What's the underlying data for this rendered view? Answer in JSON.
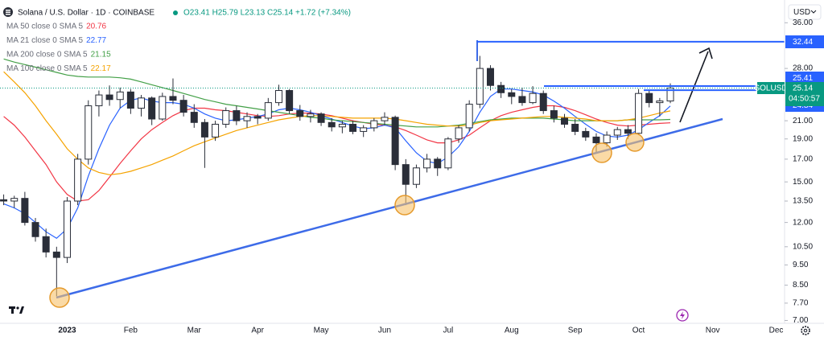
{
  "chart_data": {
    "type": "candlestick",
    "title": "Solana / U.S. Dollar · 1D · COINBASE",
    "ohlc_readout": "O23.41 H25.79 L23.13 C25.14 +1.72 (+7.34%)",
    "currency": "USD",
    "symbol": "SOLUSD",
    "countdown": "04:50:57",
    "log_scale": true,
    "grid": false,
    "up_color": "#ffffff",
    "down_color": "#2a2e39",
    "wick_color": "#2a2e39",
    "level_color": "#2962ff",
    "last_color": "#089981",
    "ylim": [
      6.8,
      40.8
    ],
    "yticks": [
      {
        "value": 36,
        "label": "36.00"
      },
      {
        "value": 28,
        "label": "28.00"
      },
      {
        "value": 21,
        "label": "21.00"
      },
      {
        "value": 19,
        "label": "19.00"
      },
      {
        "value": 17,
        "label": "17.00"
      },
      {
        "value": 15,
        "label": "15.00"
      },
      {
        "value": 13.5,
        "label": "13.50"
      },
      {
        "value": 12,
        "label": "12.00"
      },
      {
        "value": 10.5,
        "label": "10.50"
      },
      {
        "value": 9.5,
        "label": "9.50"
      },
      {
        "value": 8.5,
        "label": "8.50"
      },
      {
        "value": 7.7,
        "label": "7.70"
      },
      {
        "value": 7,
        "label": "7.00"
      }
    ],
    "levels": [
      32.44,
      25.41,
      24.84
    ],
    "categories": [
      null,
      null,
      null,
      null,
      null,
      null,
      "2023",
      null,
      null,
      null,
      null,
      null,
      "Feb",
      null,
      null,
      null,
      null,
      null,
      "Mar",
      null,
      null,
      null,
      null,
      null,
      "Apr",
      null,
      null,
      null,
      null,
      null,
      "May",
      null,
      null,
      null,
      null,
      null,
      "Jun",
      null,
      null,
      null,
      null,
      null,
      "Jul",
      null,
      null,
      null,
      null,
      null,
      "Aug",
      null,
      null,
      null,
      null,
      null,
      "Sep",
      null,
      null,
      null,
      null,
      null,
      "Oct",
      null,
      null,
      null,
      null,
      null,
      null,
      "Nov",
      null,
      null,
      null,
      null,
      null,
      "Dec"
    ],
    "ohlc": {
      "open": [
        13.6,
        13.5,
        13.7,
        12.0,
        11.1,
        10.2,
        9.9,
        13.5,
        17.0,
        22.8,
        24.2,
        23.6,
        24.6,
        22.5,
        23.8,
        21.2,
        24.0,
        23.5,
        22.0,
        20.8,
        19.2,
        20.6,
        22.2,
        21.0,
        21.5,
        21.3,
        23.2,
        24.8,
        22.2,
        21.5,
        21.8,
        20.8,
        20.3,
        20.6,
        19.8,
        20.2,
        21.0,
        21.4,
        16.5,
        14.8,
        16.2,
        17.0,
        16.2,
        19.0,
        20.2,
        23.0,
        28.0,
        25.5,
        24.5,
        24.0,
        23.2,
        24.4,
        22.2,
        21.3,
        20.6,
        19.8,
        19.2,
        18.6,
        19.4,
        20.0,
        19.6,
        24.4,
        23.2,
        23.41,
        null,
        null,
        null,
        null,
        null,
        null,
        null,
        null,
        null,
        null
      ],
      "high": [
        14.0,
        13.9,
        14.2,
        12.3,
        11.6,
        10.5,
        13.8,
        17.5,
        23.5,
        24.8,
        25.5,
        25.2,
        25.0,
        24.2,
        24.0,
        24.5,
        26.5,
        24.2,
        23.0,
        21.2,
        21.0,
        22.6,
        22.8,
        22.0,
        21.8,
        23.8,
        25.6,
        25.0,
        22.9,
        22.3,
        22.0,
        21.3,
        21.0,
        21.0,
        20.5,
        21.3,
        22.0,
        21.6,
        17.0,
        16.5,
        17.5,
        17.2,
        19.2,
        20.5,
        23.5,
        30.0,
        28.5,
        26.0,
        25.0,
        25.2,
        25.4,
        24.8,
        22.8,
        21.8,
        21.2,
        20.2,
        19.6,
        19.8,
        20.3,
        20.5,
        25.0,
        24.8,
        23.8,
        25.79,
        null,
        null,
        null,
        null,
        null,
        null,
        null,
        null,
        null,
        null
      ],
      "low": [
        13.2,
        13.0,
        11.8,
        10.8,
        9.9,
        8.0,
        9.6,
        13.2,
        16.5,
        21.5,
        22.8,
        22.5,
        21.8,
        21.5,
        20.5,
        21.0,
        23.0,
        21.5,
        20.2,
        16.2,
        18.8,
        20.2,
        20.5,
        20.2,
        20.6,
        21.0,
        22.8,
        21.8,
        21.0,
        20.8,
        20.4,
        19.8,
        19.6,
        19.5,
        19.2,
        19.8,
        20.5,
        16.0,
        13.2,
        14.5,
        15.8,
        15.5,
        16.0,
        18.6,
        19.8,
        22.5,
        24.8,
        23.8,
        23.0,
        22.8,
        23.0,
        21.8,
        20.8,
        20.2,
        19.4,
        18.8,
        17.6,
        18.2,
        18.9,
        19.0,
        19.4,
        22.6,
        21.5,
        23.13,
        null,
        null,
        null,
        null,
        null,
        null,
        null,
        null,
        null,
        null
      ],
      "close": [
        13.5,
        13.7,
        12.0,
        11.1,
        10.2,
        9.9,
        13.5,
        17.0,
        22.8,
        24.2,
        23.6,
        24.6,
        22.5,
        23.8,
        21.2,
        24.0,
        23.5,
        22.0,
        20.8,
        19.2,
        20.6,
        22.2,
        21.0,
        21.5,
        21.3,
        23.2,
        24.8,
        22.2,
        21.5,
        21.8,
        20.8,
        20.3,
        20.6,
        19.8,
        20.2,
        21.0,
        21.4,
        16.5,
        14.8,
        16.2,
        17.0,
        16.2,
        19.0,
        20.2,
        23.0,
        28.0,
        25.5,
        24.5,
        24.0,
        23.2,
        24.4,
        22.2,
        21.3,
        20.6,
        19.8,
        19.2,
        18.6,
        19.4,
        20.0,
        19.6,
        24.4,
        23.2,
        23.41,
        25.14,
        null,
        null,
        null,
        null,
        null,
        null,
        null,
        null,
        null,
        null
      ]
    },
    "series": [
      {
        "name": "MA 50 close 0 SMA 5",
        "color": "#f23645",
        "values": [
          21.5,
          20.5,
          19.2,
          17.8,
          16.5,
          15.0,
          14.0,
          13.5,
          13.6,
          14.3,
          15.4,
          16.6,
          17.8,
          19.0,
          20.0,
          20.8,
          21.6,
          22.2,
          22.5,
          22.5,
          22.3,
          22.2,
          22.0,
          21.8,
          21.6,
          21.5,
          21.6,
          21.8,
          21.9,
          21.9,
          21.8,
          21.6,
          21.3,
          21.0,
          20.8,
          20.6,
          20.5,
          20.3,
          19.9,
          19.4,
          18.9,
          18.6,
          18.6,
          18.9,
          19.4,
          20.2,
          21.0,
          21.6,
          22.0,
          22.3,
          22.6,
          22.8,
          22.8,
          22.6,
          22.2,
          21.7,
          21.2,
          20.8,
          20.5,
          20.4,
          20.5,
          20.6,
          20.7,
          20.76,
          null,
          null,
          null,
          null,
          null,
          null,
          null,
          null,
          null,
          null
        ]
      },
      {
        "name": "MA 21 close 0 SMA 5",
        "color": "#2962ff",
        "values": [
          13.3,
          13.0,
          12.6,
          12.0,
          11.4,
          11.0,
          11.6,
          13.0,
          15.5,
          18.0,
          20.5,
          22.5,
          23.5,
          23.8,
          23.4,
          23.2,
          23.2,
          23.0,
          22.5,
          21.8,
          21.3,
          21.0,
          21.1,
          21.3,
          21.5,
          21.8,
          22.3,
          22.5,
          22.3,
          22.0,
          21.6,
          21.2,
          20.8,
          20.4,
          20.1,
          20.2,
          20.5,
          20.2,
          18.8,
          17.6,
          16.8,
          16.6,
          17.2,
          18.2,
          19.8,
          22.0,
          24.0,
          25.0,
          25.0,
          24.8,
          24.6,
          24.2,
          23.4,
          22.5,
          21.5,
          20.6,
          19.8,
          19.3,
          19.2,
          19.4,
          20.0,
          20.8,
          21.6,
          22.77,
          null,
          null,
          null,
          null,
          null,
          null,
          null,
          null,
          null,
          null
        ]
      },
      {
        "name": "MA 200 close 0 SMA 5",
        "color": "#43a047",
        "values": [
          29.5,
          29.0,
          28.6,
          28.2,
          27.8,
          27.4,
          27.0,
          26.8,
          26.7,
          26.7,
          26.7,
          26.6,
          26.4,
          26.0,
          25.6,
          25.2,
          24.8,
          24.4,
          24.0,
          23.6,
          23.3,
          23.0,
          22.8,
          22.6,
          22.4,
          22.2,
          22.0,
          21.8,
          21.6,
          21.4,
          21.3,
          21.1,
          21.0,
          20.9,
          20.8,
          20.7,
          20.6,
          20.5,
          20.4,
          20.3,
          20.3,
          20.3,
          20.4,
          20.5,
          20.7,
          20.9,
          21.1,
          21.2,
          21.3,
          21.3,
          21.3,
          21.3,
          21.2,
          21.1,
          21.0,
          21.0,
          21.0,
          21.0,
          21.0,
          21.1,
          21.1,
          21.1,
          21.1,
          21.15,
          null,
          null,
          null,
          null,
          null,
          null,
          null,
          null,
          null,
          null
        ]
      },
      {
        "name": "MA 100 close 0 SMA 5",
        "color": "#f5a300",
        "values": [
          27.5,
          26.0,
          24.5,
          22.8,
          21.0,
          19.5,
          18.0,
          17.0,
          16.2,
          15.8,
          15.6,
          15.7,
          15.9,
          16.2,
          16.5,
          16.9,
          17.3,
          17.8,
          18.3,
          18.7,
          19.1,
          19.5,
          19.9,
          20.2,
          20.5,
          20.8,
          21.1,
          21.3,
          21.5,
          21.6,
          21.6,
          21.5,
          21.4,
          21.3,
          21.3,
          21.3,
          21.3,
          21.2,
          21.0,
          20.8,
          20.6,
          20.5,
          20.4,
          20.4,
          20.5,
          20.8,
          21.0,
          21.1,
          21.2,
          21.3,
          21.4,
          21.5,
          21.5,
          21.4,
          21.3,
          21.2,
          21.0,
          21.0,
          21.0,
          21.1,
          21.3,
          21.6,
          21.9,
          22.17,
          null,
          null,
          null,
          null,
          null,
          null,
          null,
          null,
          null,
          null
        ]
      }
    ]
  }
}
